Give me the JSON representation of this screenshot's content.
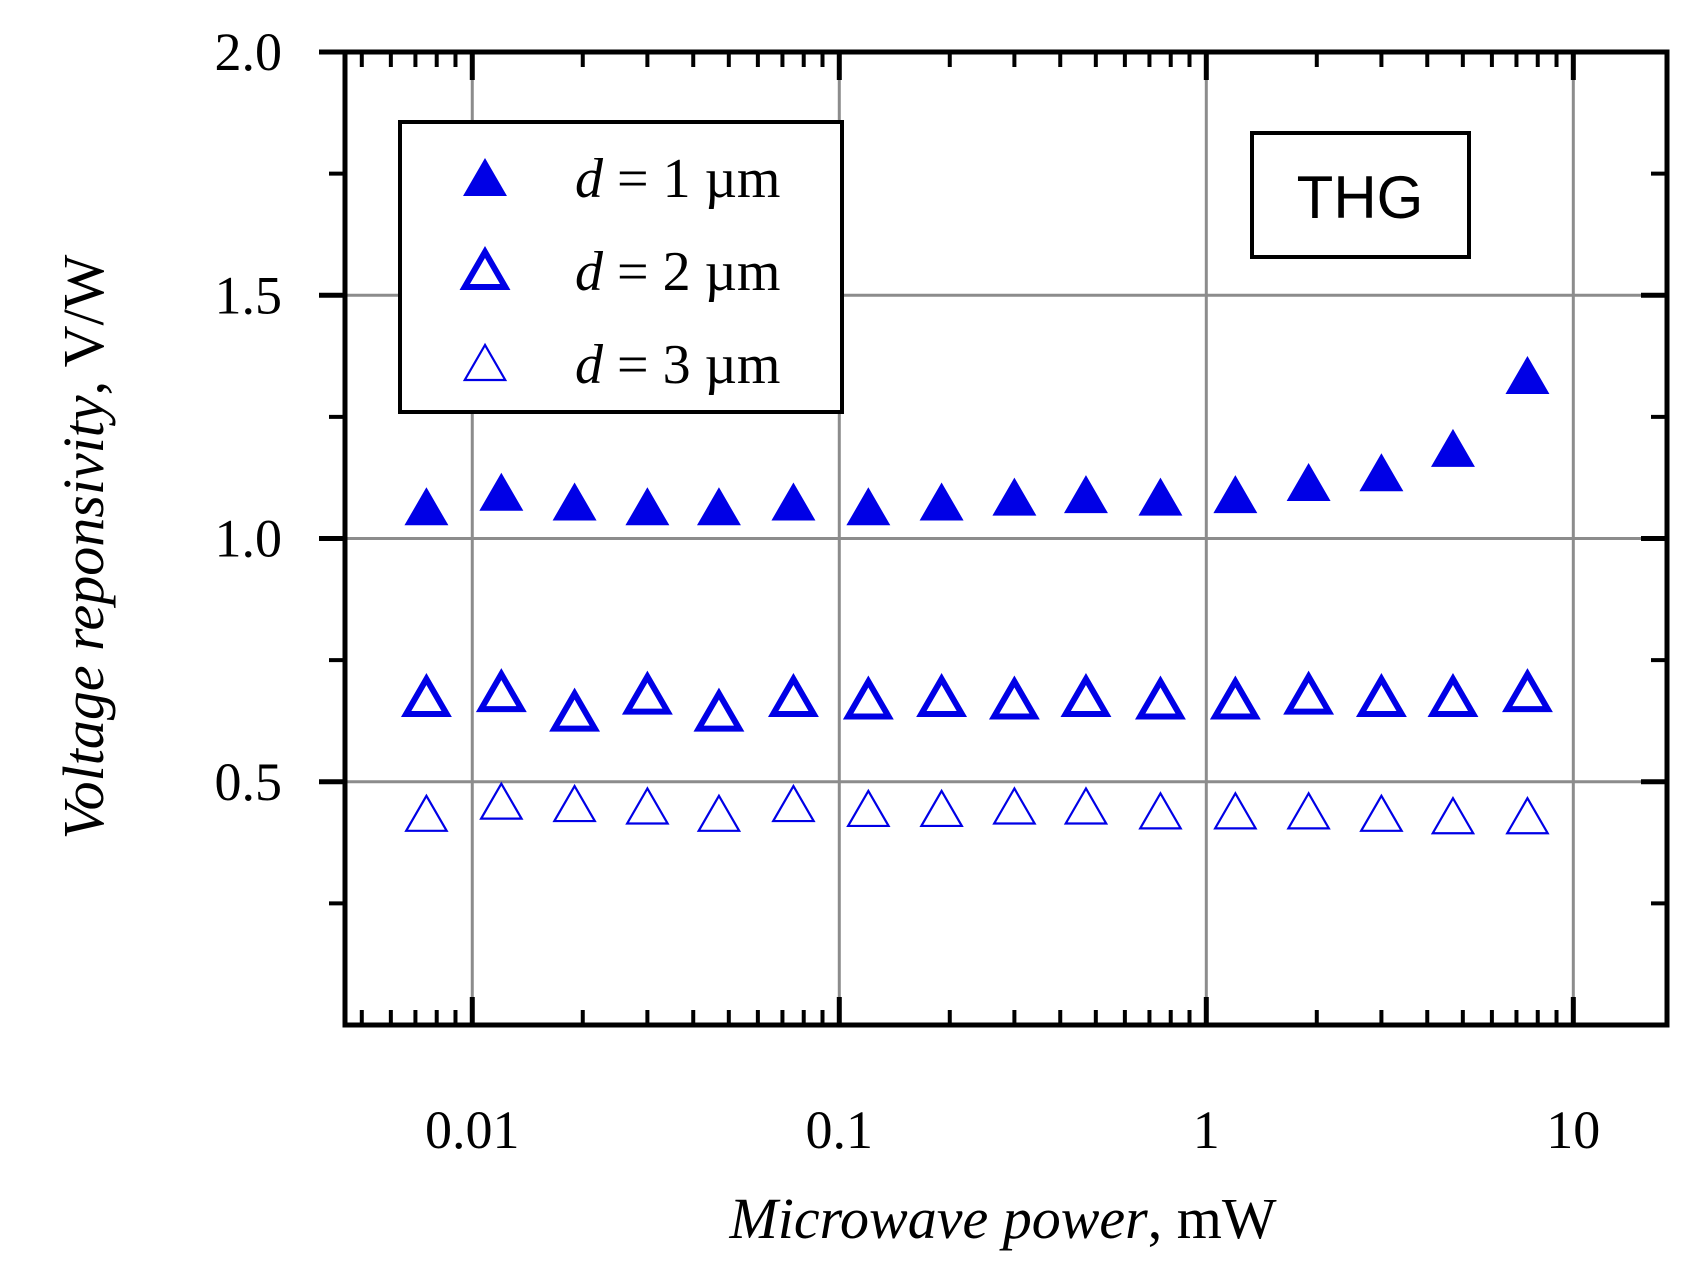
{
  "chart_data": {
    "type": "scatter",
    "title": "",
    "xlabel": {
      "italic": "Microwave power",
      "rest": ", mW"
    },
    "ylabel": {
      "italic": "Voltage reponsivity",
      "rest": ", V/W"
    },
    "xscale": "log",
    "xlim": [
      0.0045,
      18
    ],
    "ylim": [
      0,
      2.0
    ],
    "grid": true,
    "x_ticks": [
      0.01,
      0.1,
      1,
      10
    ],
    "x_tick_labels": [
      "0.01",
      "0.1",
      "1",
      "10"
    ],
    "y_ticks": [
      0.5,
      1.0,
      1.5,
      2.0
    ],
    "y_tick_labels": [
      "0.5",
      "1.0",
      "1.5",
      "2.0"
    ],
    "y_minor_ticks": [
      0.25,
      0.75,
      1.25,
      1.75
    ],
    "legend_position": "top-left",
    "annotation": "THG",
    "x": [
      0.0075,
      0.012,
      0.019,
      0.03,
      0.047,
      0.075,
      0.12,
      0.19,
      0.3,
      0.47,
      0.75,
      1.2,
      1.9,
      3.0,
      4.7,
      7.5
    ],
    "series": [
      {
        "name": "d = 1 µm",
        "label_var": "d",
        "label_rest": " = 1 µm",
        "marker": "filled",
        "color": "#0000e6",
        "values": [
          1.06,
          1.09,
          1.07,
          1.06,
          1.06,
          1.07,
          1.06,
          1.07,
          1.08,
          1.085,
          1.08,
          1.085,
          1.11,
          1.13,
          1.18,
          1.33
        ]
      },
      {
        "name": "d = 2 µm",
        "label_var": "d",
        "label_rest": " = 2 µm",
        "marker": "bold-hollow",
        "color": "#0000e6",
        "values": [
          0.67,
          0.68,
          0.64,
          0.675,
          0.64,
          0.67,
          0.665,
          0.67,
          0.665,
          0.67,
          0.665,
          0.665,
          0.675,
          0.67,
          0.67,
          0.68
        ]
      },
      {
        "name": "d = 3 µm",
        "label_var": "d",
        "label_rest": " = 3 µm",
        "marker": "thin-hollow",
        "color": "#0000e6",
        "values": [
          0.43,
          0.455,
          0.45,
          0.445,
          0.43,
          0.45,
          0.44,
          0.44,
          0.445,
          0.445,
          0.435,
          0.435,
          0.435,
          0.43,
          0.425,
          0.425
        ]
      }
    ]
  }
}
